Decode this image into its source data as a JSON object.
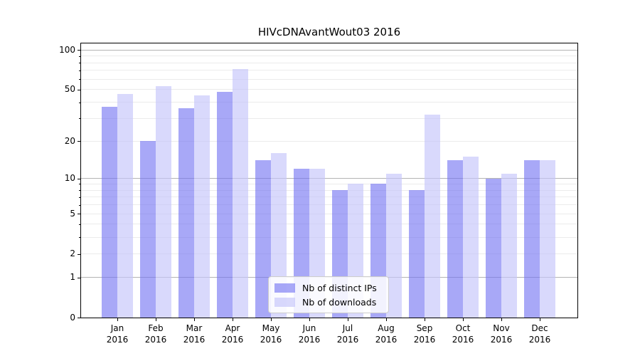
{
  "title": "HIVcDNAvantWout03 2016",
  "chart_data": {
    "type": "bar",
    "title": "HIVcDNAvantWout03 2016",
    "categories": [
      "Jan 2016",
      "Feb 2016",
      "Mar 2016",
      "Apr 2016",
      "May 2016",
      "Jun 2016",
      "Jul 2016",
      "Aug 2016",
      "Sep 2016",
      "Oct 2016",
      "Nov 2016",
      "Dec 2016"
    ],
    "series": [
      {
        "name": "Nb of distinct IPs",
        "color": "rgba(115,115,242,0.62)",
        "values": [
          37,
          20,
          36,
          48,
          14,
          12,
          8,
          9,
          8,
          14,
          10,
          14
        ]
      },
      {
        "name": "Nb of downloads",
        "color": "rgba(196,196,250,0.65)",
        "values": [
          46,
          53,
          45,
          72,
          16,
          12,
          9,
          11,
          32,
          15,
          11,
          14
        ]
      }
    ],
    "yscale": "log(value+1)",
    "yticks": [
      0,
      1,
      2,
      5,
      10,
      20,
      50,
      100
    ],
    "ylim": [
      0,
      112
    ],
    "grid": true,
    "legend_position": "lower center"
  }
}
